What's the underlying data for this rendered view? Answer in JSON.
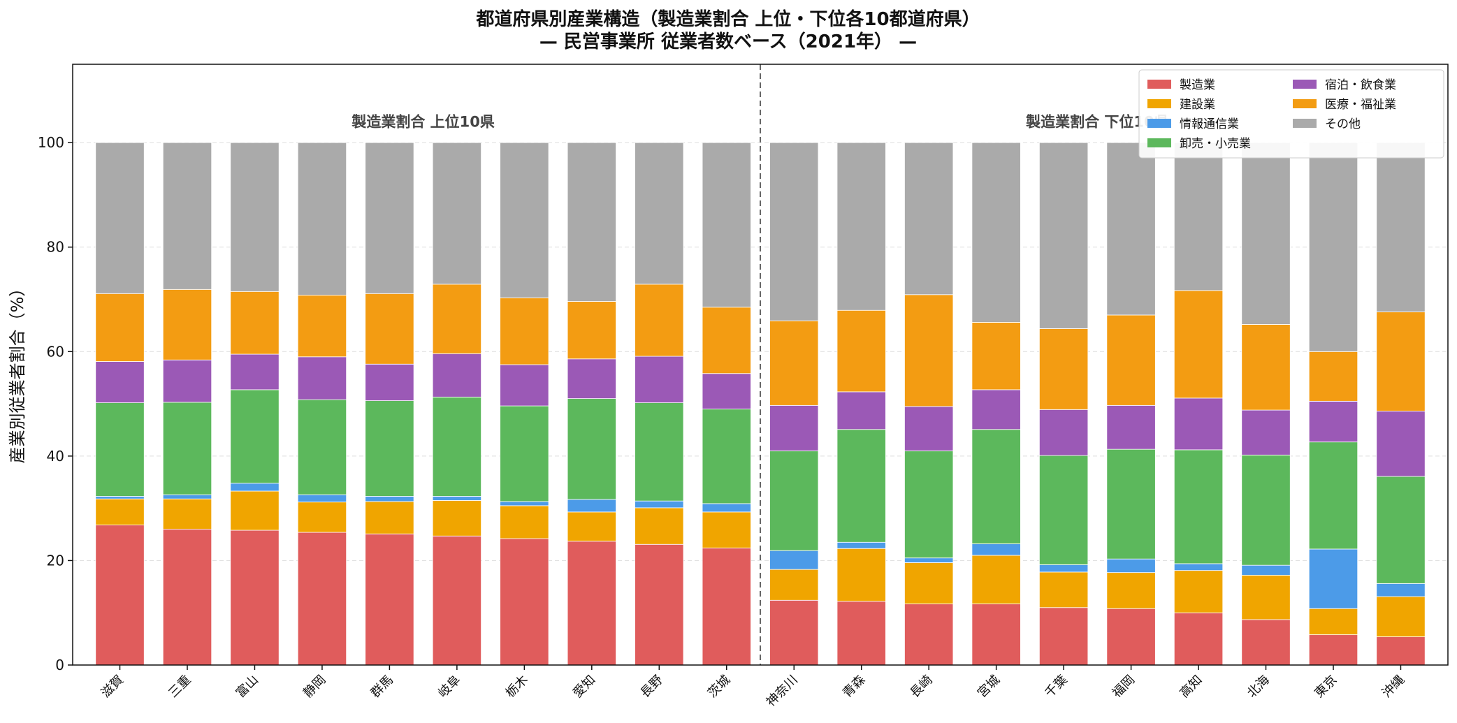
{
  "chart_data": {
    "type": "bar",
    "stacked": true,
    "title": "都道府県別産業構造（製造業割合 上位・下位各10都道府県）",
    "subtitle": "— 民営事業所 従業者数ベース（2021年） —",
    "xlabel": "",
    "ylabel": "産業別従業者割合（%）",
    "ylim": [
      0,
      115
    ],
    "yticks": [
      0,
      20,
      40,
      60,
      80,
      100
    ],
    "grid": true,
    "legend_position": "top-right",
    "annotations": [
      {
        "text": "製造業割合 上位10県",
        "group": "top"
      },
      {
        "text": "製造業割合 下位10県",
        "group": "bottom"
      }
    ],
    "categories": [
      "滋賀",
      "三重",
      "富山",
      "静岡",
      "群馬",
      "岐阜",
      "栃木",
      "愛知",
      "長野",
      "茨城",
      "神奈川",
      "青森",
      "長崎",
      "宮城",
      "千葉",
      "福岡",
      "高知",
      "北海",
      "東京",
      "沖縄"
    ],
    "series": [
      {
        "name": "製造業",
        "color": "#e05c5c",
        "values": [
          26.8,
          26.0,
          25.8,
          25.4,
          25.1,
          24.7,
          24.2,
          23.7,
          23.1,
          22.4,
          12.4,
          12.2,
          11.7,
          11.7,
          11.0,
          10.8,
          10.0,
          8.7,
          5.8,
          5.4
        ]
      },
      {
        "name": "建設業",
        "color": "#f0a500",
        "values": [
          5.0,
          5.8,
          7.5,
          5.8,
          6.2,
          6.8,
          6.3,
          5.6,
          7.0,
          6.9,
          5.9,
          10.1,
          7.9,
          9.3,
          6.8,
          6.9,
          8.1,
          8.5,
          5.0,
          7.7
        ]
      },
      {
        "name": "情報通信業",
        "color": "#4c9be8",
        "values": [
          0.5,
          0.8,
          1.5,
          1.4,
          1.0,
          0.8,
          0.8,
          2.4,
          1.3,
          1.6,
          3.6,
          1.2,
          0.9,
          2.2,
          1.4,
          2.6,
          1.3,
          1.9,
          11.4,
          2.5
        ]
      },
      {
        "name": "卸売・小売業",
        "color": "#5cb85c",
        "values": [
          17.9,
          17.7,
          17.9,
          18.2,
          18.3,
          19.0,
          18.3,
          19.3,
          18.8,
          18.1,
          19.1,
          21.6,
          20.5,
          21.9,
          20.9,
          21.0,
          21.8,
          21.1,
          20.5,
          20.5
        ]
      },
      {
        "name": "宿泊・飲食業",
        "color": "#9b59b6",
        "values": [
          7.9,
          8.1,
          6.8,
          8.2,
          7.0,
          8.3,
          7.9,
          7.6,
          8.9,
          6.8,
          8.7,
          7.2,
          8.5,
          7.6,
          8.8,
          8.4,
          9.9,
          8.6,
          7.8,
          12.5
        ]
      },
      {
        "name": "医療・福祉業",
        "color": "#f39c12",
        "values": [
          13.0,
          13.5,
          12.0,
          11.8,
          13.5,
          13.3,
          12.8,
          11.0,
          13.8,
          12.7,
          16.2,
          15.6,
          21.4,
          12.9,
          15.5,
          17.3,
          20.6,
          16.4,
          9.5,
          19.0
        ]
      },
      {
        "name": "その他",
        "color": "#aaaaaa",
        "values": [
          28.9,
          28.1,
          28.5,
          29.2,
          28.9,
          27.1,
          29.7,
          30.4,
          27.1,
          31.5,
          34.1,
          32.1,
          29.1,
          34.4,
          35.6,
          33.0,
          28.3,
          34.8,
          40.0,
          32.4
        ]
      }
    ]
  }
}
